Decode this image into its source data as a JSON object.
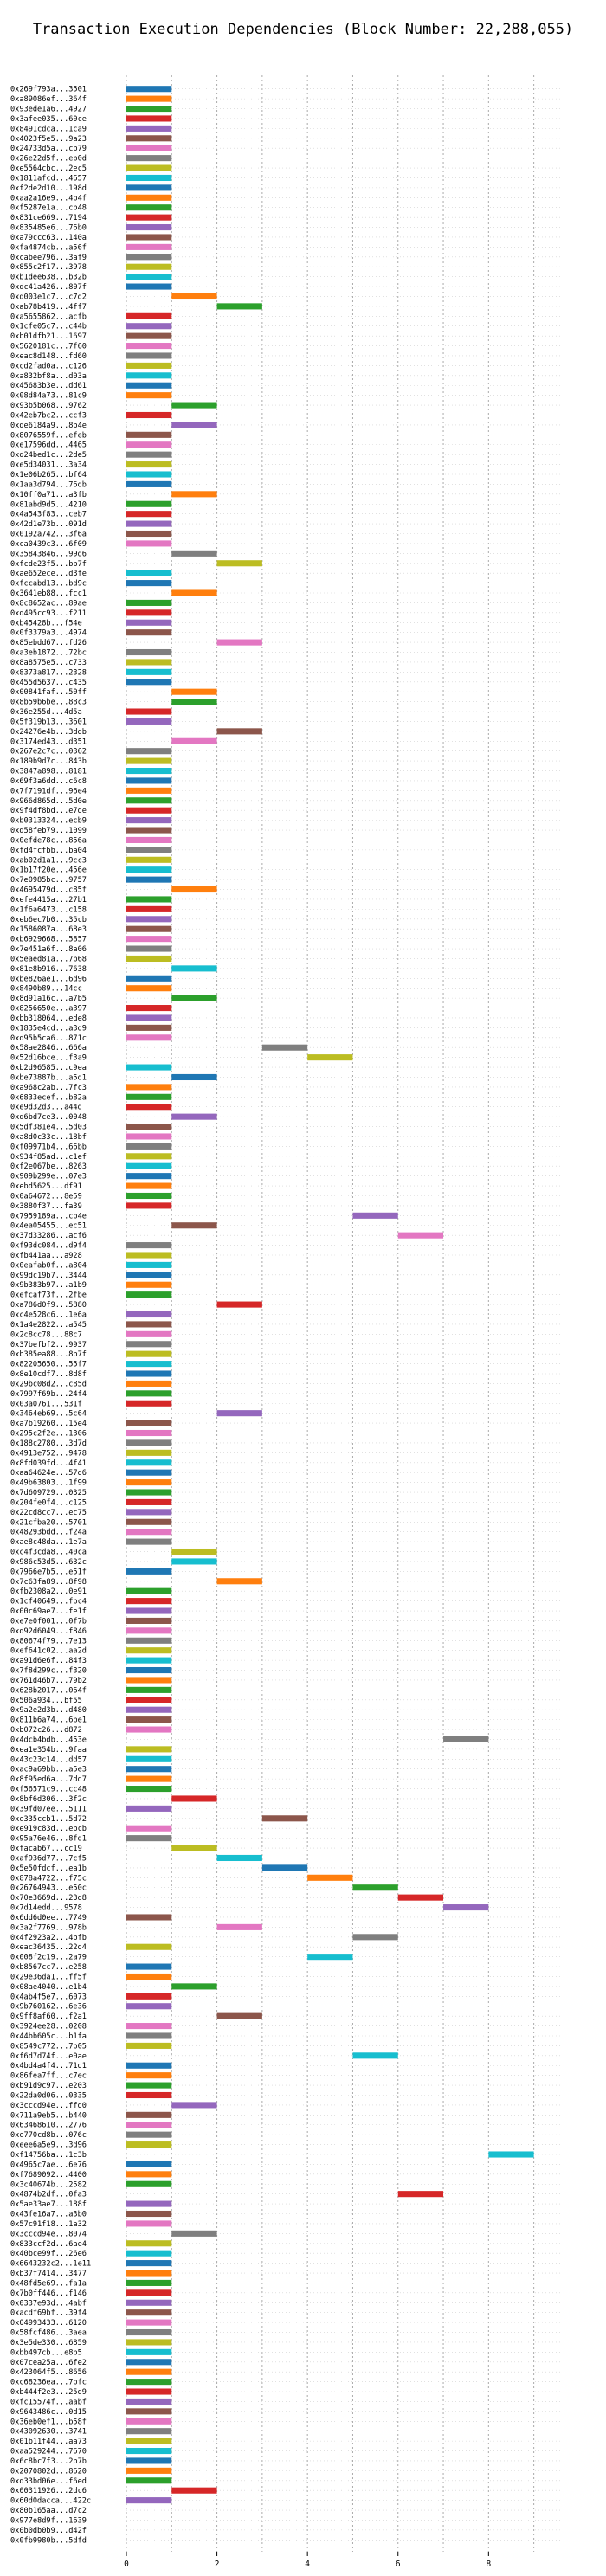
{
  "chart_data": {
    "type": "bar",
    "orientation": "horizontal",
    "title": "Transaction Execution Dependencies (Block Number: 22,288,055)",
    "xlabel": "",
    "ylabel": "",
    "xlim": [
      0,
      9.6
    ],
    "xticks": [
      0,
      2,
      4,
      6,
      8
    ],
    "grid": "vertical dashed",
    "palette": [
      "#1f77b4",
      "#ff7f0e",
      "#2ca02c",
      "#d62728",
      "#9467bd",
      "#8c564b",
      "#e377c2",
      "#7f7f7f",
      "#bcbd22",
      "#17becf"
    ],
    "transactions": [
      "0x269f793a...3501",
      "0xa89086ef...364f",
      "0x93ede1a6...4927",
      "0x3afee035...60ce",
      "0x8491cdca...1ca9",
      "0x4023f5e5...9a23",
      "0x24733d5a...cb79",
      "0x26e22d5f...eb0d",
      "0xe5564cbc...2ec5",
      "0x1811afcd...4657",
      "0xf2de2d10...198d",
      "0xaa2a16e9...4b4f",
      "0xf5287e1a...cb48",
      "0x831ce669...7194",
      "0x835485e6...76b0",
      "0xa79ccc63...140a",
      "0xfa4874cb...a56f",
      "0xcabee796...3af9",
      "0x855c2f17...3978",
      "0xb1dee638...b32b",
      "0xdc41a426...807f",
      "0xd003e1c7...c7d2",
      "0xab78b419...4ff7",
      "0xa5655862...acfb",
      "0x1cfe05c7...c44b",
      "0xb01dfb21...1697",
      "0x5620181c...7f60",
      "0xeac8d148...fd60",
      "0xcd2fad0a...c126",
      "0xa832bf8a...d03a",
      "0x45683b3e...dd61",
      "0x08d84a73...81c9",
      "0x93b5b068...9762",
      "0x42eb7bc2...ccf3",
      "0xde6184a9...8b4e",
      "0x8076559f...efeb",
      "0xe17596dd...4465",
      "0xd24bed1c...2de5",
      "0xe5d34031...3a34",
      "0x1e06b265...bf64",
      "0x1aa3d794...76db",
      "0x10ff0a71...a3fb",
      "0x81abd9d5...4210",
      "0x4a543f83...ceb7",
      "0x42d1e73b...091d",
      "0x0192a742...3f6a",
      "0xca0439c3...6f09",
      "0x35843846...99d6",
      "0xfcde23f5...bb7f",
      "0xae652ece...d3fe",
      "0xfccabd13...bd9c",
      "0x3641eb88...fcc1",
      "0x8c8652ac...89ae",
      "0xd495cc93...f211",
      "0xb45428b...f54e",
      "0x0f3379a3...4974",
      "0x85ebdd67...fd26",
      "0xa3eb1872...72bc",
      "0x8a8575e5...c733",
      "0x8373a817...2328",
      "0x455d5637...c435",
      "0x00841faf...50ff",
      "0x8b59b6be...88c3",
      "0x36e255d...4d5a",
      "0x5f319b13...3601",
      "0x24276e4b...3ddb",
      "0x3174ed43...d351",
      "0x267e2c7c...0362",
      "0x189b9d7c...843b",
      "0x3847a898...8181",
      "0x69f3a6dd...c6c8",
      "0x7f7191df...96e4",
      "0x966d865d...5d0e",
      "0x9f4df8bd...e7de",
      "0xb0313324...ecb9",
      "0xd58feb79...1099",
      "0x0efde78c...856a",
      "0xfd4fcfbb...ba04",
      "0xab02d1a1...9cc3",
      "0x1b17f20e...456e",
      "0x7e0985bc...9757",
      "0x4695479d...c85f",
      "0xefe4415a...27b1",
      "0x1f6a6473...c158",
      "0xeb6ec7b0...35cb",
      "0x1586087a...68e3",
      "0xb6929668...5857",
      "0x7e451a6f...8a06",
      "0x5eaed81a...7b68",
      "0x81e8b916...7638",
      "0xbe826ae1...6d96",
      "0x8490b89...14cc",
      "0x8d91a16c...a7b5",
      "0x8256650e...a397",
      "0xbb318064...ede8",
      "0x1835e4cd...a3d9",
      "0xd95b5ca6...871c",
      "0x58ae2846...666a",
      "0x52d16bce...f3a9",
      "0xb2d96585...c9ea",
      "0xbe73887b...a5d1",
      "0xa968c2ab...7fc3",
      "0x6833ecef...b82a",
      "0xe9d32d3...a44d",
      "0xd6bd7ce3...0048",
      "0x5df381e4...5d03",
      "0xa8d0c33c...18bf",
      "0xf09971b4...66bb",
      "0x934f85ad...c1ef",
      "0xf2e067be...8263",
      "0x909b299e...07e3",
      "0xebd5625...df91",
      "0x0a64672...8e59",
      "0x3880f37...fa39",
      "0x7959189a...cb4e",
      "0x4ea05455...ec51",
      "0x37d33286...acf6",
      "0xf93dc084...d9f4",
      "0xfb441aa...a928",
      "0x0eafab0f...a804",
      "0x99dc19b7...3444",
      "0x9b383b97...a1b9",
      "0xefcaf73f...2fbe",
      "0xa786d0f9...5880",
      "0xc4e528c6...1e6a",
      "0x1a4e2822...a545",
      "0x2c8cc78...88c7",
      "0x37befbf2...9937",
      "0xb385ea88...8b7f",
      "0x82205650...55f7",
      "0x8e10cdf7...8d8f",
      "0x29bc08d2...c85d",
      "0x7997f69b...24f4",
      "0x03a0761...531f",
      "0x3464eb69...5c64",
      "0xa7b19260...15e4",
      "0x295c2f2e...1306",
      "0x188c2780...3d7d",
      "0x4913e752...9478",
      "0x8fd039fd...4f41",
      "0xaa64624e...57d6",
      "0x49b63803...1f99",
      "0x7d609729...0325",
      "0x204fe0f4...c125",
      "0x22cd8cc7...ec75",
      "0x21cfba20...5701",
      "0x48293bdd...f24a",
      "0xae8c48da...1e7a",
      "0xc4f3cda8...40ca",
      "0x986c53d5...632c",
      "0x7966e7b5...e51f",
      "0x7c63fa89...8f98",
      "0xfb2308a2...0e91",
      "0x1cf40649...fbc4",
      "0x00c69ae7...fe1f",
      "0xe7e0f001...0f7b",
      "0xd92d6049...f846",
      "0x80674f79...7e13",
      "0xef641c02...aa2d",
      "0xa91d6e6f...84f3",
      "0x7f8d299c...f320",
      "0x761d46b7...79b2",
      "0x628b2017...064f",
      "0x506a934...bf55",
      "0x9a2e2d3b...d480",
      "0x811b6a74...6be1",
      "0xb072c26...d872",
      "0x4dcb4bdb...453e",
      "0xea1e354b...9faa",
      "0x43c23c14...dd57",
      "0xac9a69bb...a5e3",
      "0x8f95ed6a...7dd7",
      "0xf56571c9...cc48",
      "0x8bf6d306...3f2c",
      "0x39fd07ee...5111",
      "0xe335ccb1...5d72",
      "0xe919c83d...ebcb",
      "0x95a76e46...8fd1",
      "0xfacab67...cc19",
      "0xaf936d77...7cf5",
      "0x5e50fdcf...ea1b",
      "0x878a4722...f75c",
      "0x26764943...e50c",
      "0x70e3669d...23d8",
      "0x7d14edd...9578",
      "0x6dd6d0ee...7749",
      "0x3a2f7769...978b",
      "0x4f2923a2...4bfb",
      "0xeac36435...22d4",
      "0x008f2c19...2a79",
      "0xb8567cc7...e258",
      "0x29e36da1...ff5f",
      "0x08ae4040...e1b4",
      "0x4ab4f5e7...6073",
      "0x9b760162...6e36",
      "0x9ff8af60...f2a1",
      "0x3924ee28...0208",
      "0x44bb605c...b1fa",
      "0x8549c772...7b05",
      "0xf6d7d74f...e0ae",
      "0x4bd4a4f4...71d1",
      "0x86fea7ff...c7ec",
      "0xb91d9c97...e203",
      "0x22da0d06...0335",
      "0x3cccd94e...ffd0",
      "0x711a9eb5...b440",
      "0x63468610...2776",
      "0xe770cd8b...076c",
      "0xeee6a5e9...3d96",
      "0xf14756ba...1c3b",
      "0x4965c7ae...6e76",
      "0xf7689092...4400",
      "0x3c40674b...2582",
      "0x4874b2df...0fa3",
      "0x5ae33ae7...188f",
      "0x43fe16a7...a3b0",
      "0x57c91f18...1a32",
      "0x3cccd94e...8074",
      "0x833ccf2d...6ae4",
      "0x40bce99f...26e6",
      "0x6643232c2...1e11",
      "0xb37f7414...3477",
      "0x48fd5e69...fa1a",
      "0x7b0ff446...f146",
      "0x0337e93d...4abf",
      "0xacdf69bf...39f4",
      "0x04993433...6120",
      "0x58fcf486...3aea",
      "0x3e5de330...6859",
      "0xbb497cb...e8b5",
      "0x07cea25a...6fe2",
      "0x423064f5...8656",
      "0xc68236ea...7bfc",
      "0xb444f2e3...25d9",
      "0xfc15574f...aabf",
      "0x9643486c...0d15",
      "0x36eb0ef1...b58f",
      "0x43092630...3741",
      "0x01b11f44...aa73",
      "0xaa529244...7670",
      "0x6c8bc7f3...2b7b",
      "0x2070802d...8620",
      "0xd33bd06e...f6ed",
      "0x00311926...2dc6",
      "0x60d0dacca...422c",
      "0x80b165aa...d7c2",
      "0x977e8d9f...1639",
      "0x0b0db0b9...d42f",
      "0x0fb9980b...5dfd"
    ],
    "start": [
      0,
      0,
      0,
      0,
      0,
      0,
      0,
      0,
      0,
      0,
      0,
      0,
      0,
      0,
      0,
      0,
      0,
      0,
      0,
      0,
      0,
      1,
      2,
      0,
      0,
      0,
      0,
      0,
      0,
      0,
      0,
      0,
      1,
      0,
      1,
      0,
      0,
      0,
      0,
      0,
      0,
      1,
      0,
      0,
      0,
      0,
      0,
      1,
      2,
      0,
      0,
      1,
      0,
      0,
      0,
      0,
      2,
      0,
      0,
      0,
      0,
      1,
      1,
      0,
      0,
      2,
      1,
      0,
      0,
      0,
      0,
      0,
      0,
      0,
      0,
      0,
      0,
      0,
      0,
      0,
      0,
      1,
      0,
      0,
      0,
      0,
      0,
      0,
      0,
      1,
      0,
      0,
      1,
      0,
      0,
      0,
      0,
      3,
      4,
      0,
      1,
      0,
      0,
      0,
      1,
      0,
      0,
      0,
      0,
      0,
      0,
      0,
      0,
      0,
      5,
      1,
      6,
      0,
      0,
      0,
      0,
      0,
      0,
      2,
      0,
      0,
      0,
      0,
      0,
      0,
      0,
      0,
      0,
      0,
      2,
      0,
      0,
      0,
      0,
      0,
      0,
      0,
      0,
      0,
      0,
      0,
      0,
      0,
      1,
      1,
      0,
      2,
      0,
      0,
      0,
      0,
      0,
      0,
      0,
      0,
      0,
      0,
      0,
      0,
      0,
      0,
      0,
      7,
      0,
      0,
      0,
      0,
      0,
      1,
      0,
      3,
      0,
      0,
      1,
      2,
      3,
      4,
      5,
      6,
      7,
      0,
      2,
      5,
      0,
      4,
      0,
      0,
      1,
      0,
      0,
      2,
      0,
      0,
      0,
      5,
      0,
      0,
      0,
      0,
      1,
      0,
      0,
      0,
      0,
      8,
      0,
      0,
      0,
      6,
      0,
      0,
      0,
      1,
      0,
      0,
      0,
      0,
      0,
      0,
      0,
      0,
      0,
      0,
      0,
      0,
      0,
      0,
      0,
      0,
      0,
      0,
      0,
      0,
      0,
      0,
      0,
      0,
      0,
      1,
      0
    ],
    "duration": 1
  }
}
